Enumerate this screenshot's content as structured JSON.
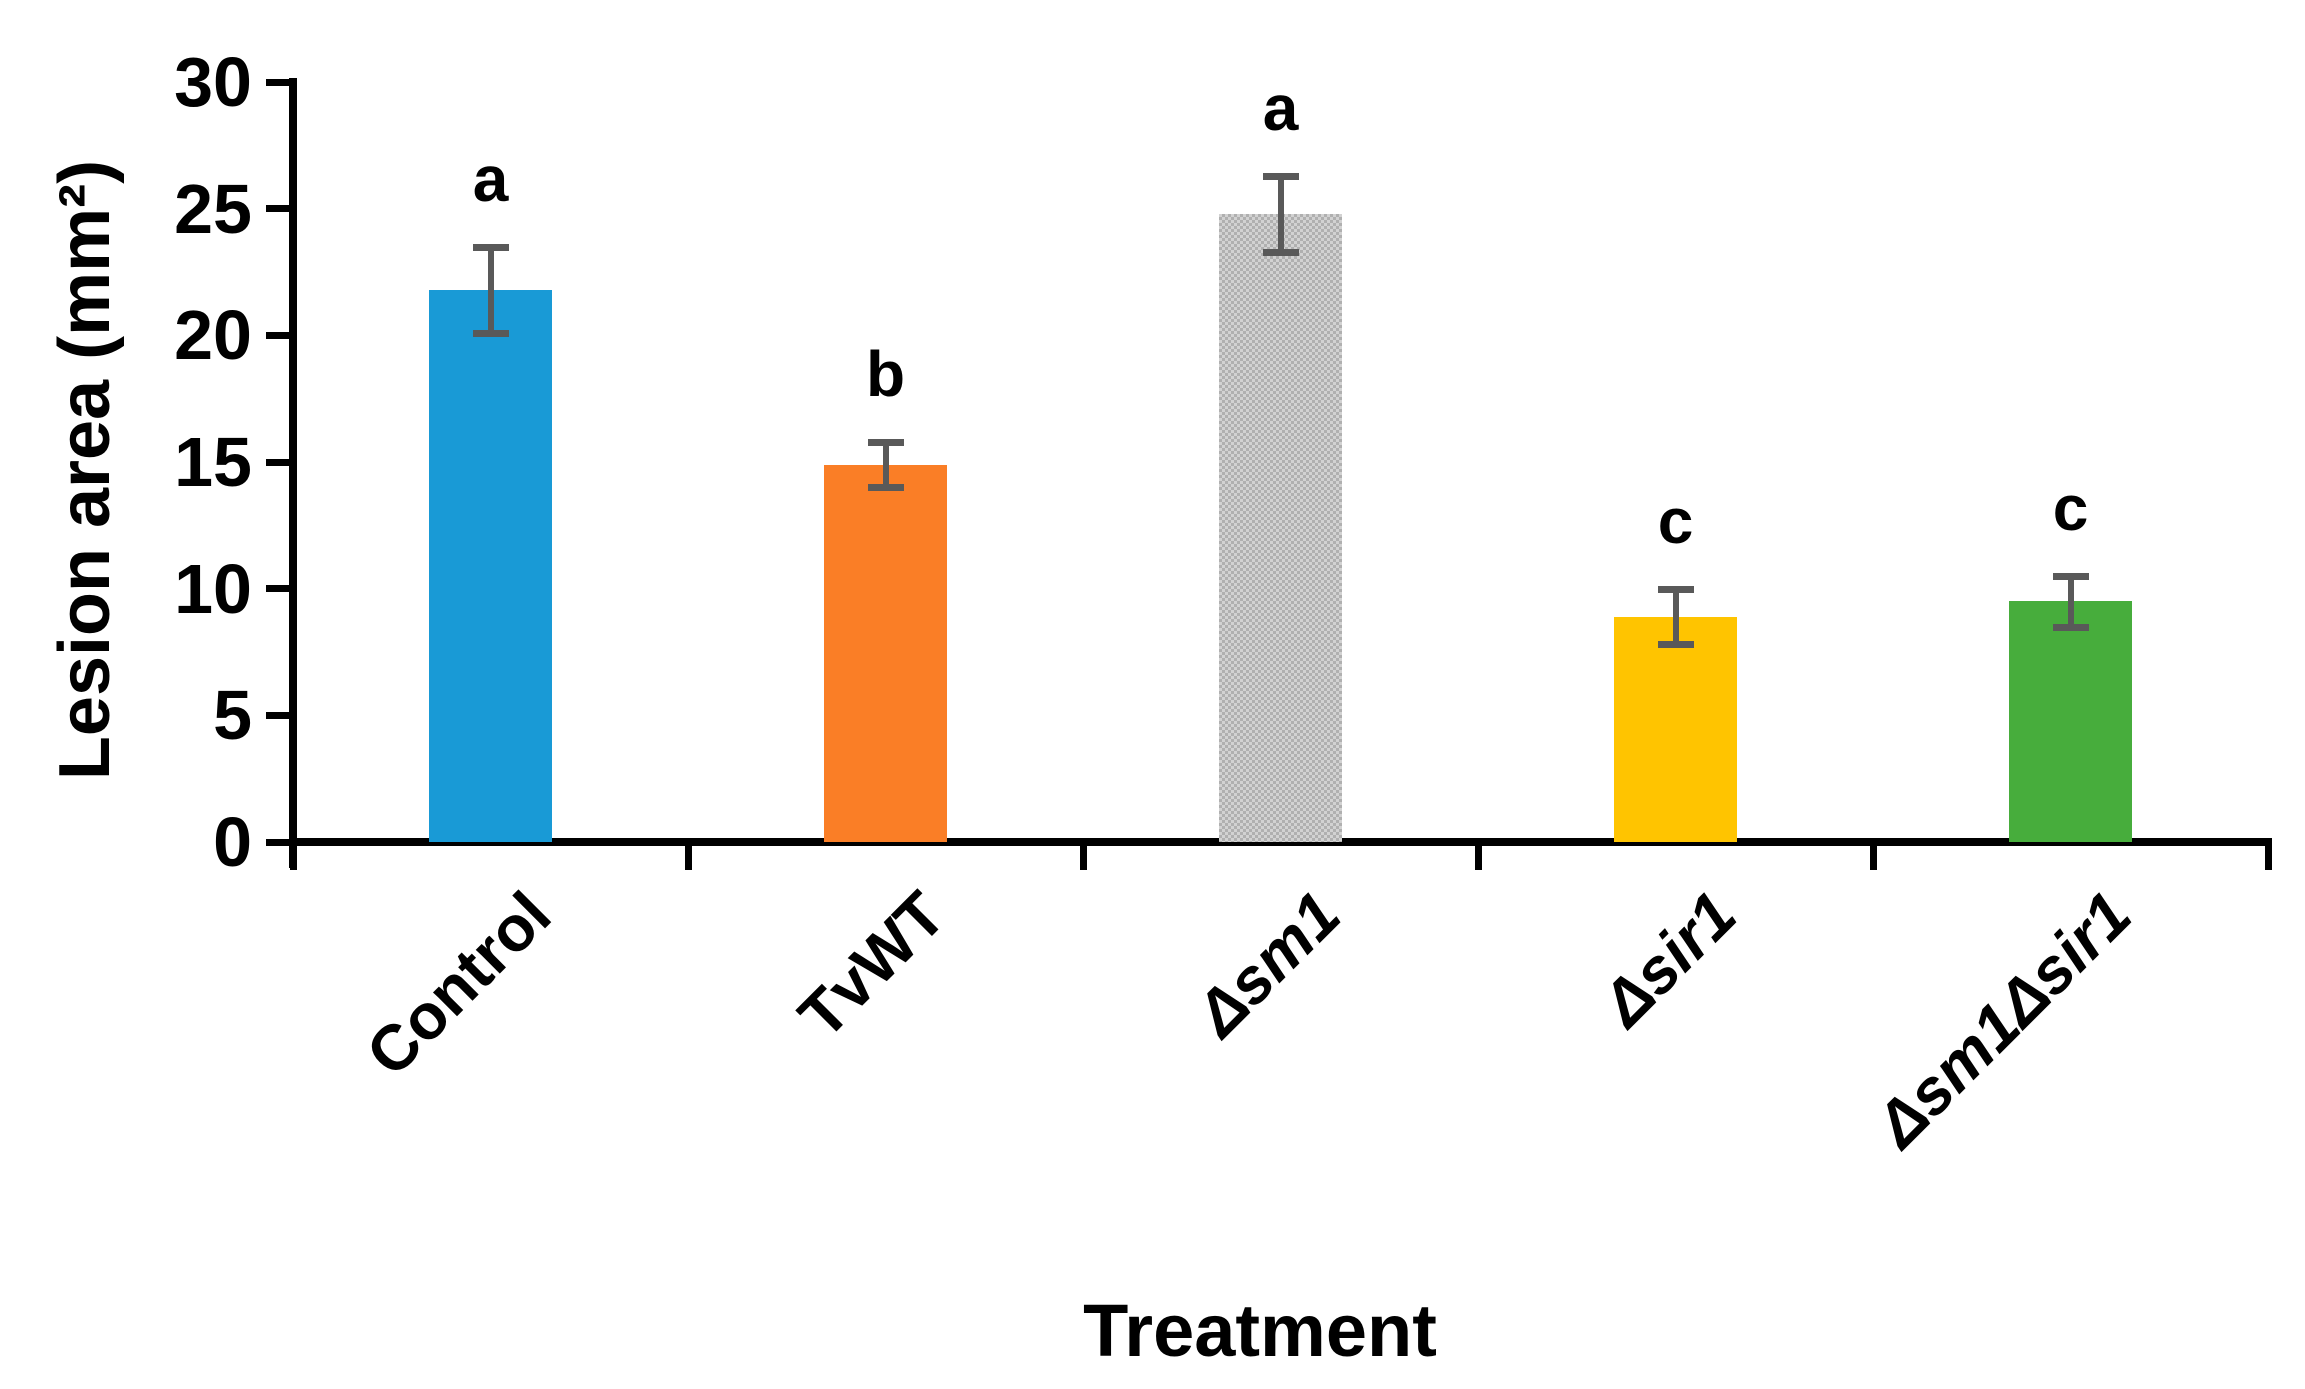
{
  "chart_data": {
    "type": "bar",
    "title": "",
    "xlabel": "Treatment",
    "ylabel": "Lesion area (mm²)",
    "ylim": [
      0,
      30
    ],
    "yticks": [
      0,
      5,
      10,
      15,
      20,
      25,
      30
    ],
    "grid": false,
    "legend": null,
    "categories": [
      "Control",
      "TvWT",
      "Δsm1",
      "Δsir1",
      "Δsm1Δsir1"
    ],
    "values": [
      21.8,
      14.9,
      24.8,
      8.9,
      9.5
    ],
    "errors": [
      1.7,
      0.9,
      1.5,
      1.1,
      1.0
    ],
    "sig_letters": [
      "a",
      "b",
      "a",
      "c",
      "c"
    ],
    "bar_colors": [
      "#199ad6",
      "#fa7e26",
      "#c6c6c6",
      "#ffc400",
      "#47ad3c"
    ],
    "bar_patterns": [
      null,
      null,
      "checker",
      null,
      null
    ],
    "italic_categories": [
      false,
      false,
      true,
      true,
      true
    ],
    "error_bar_color": "#595959",
    "axis_color": "#000000"
  }
}
